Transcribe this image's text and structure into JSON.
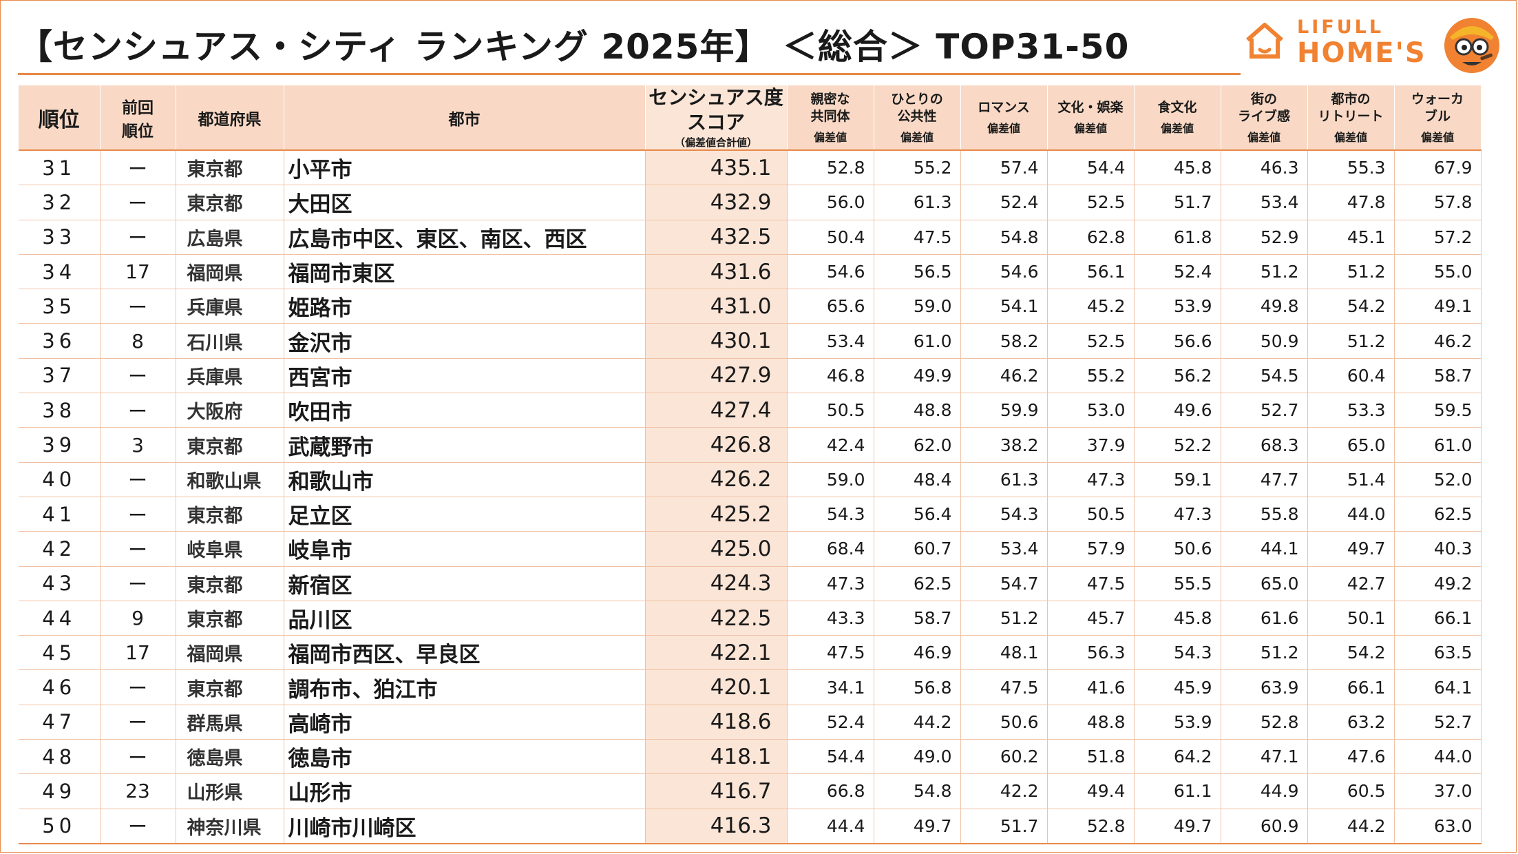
{
  "title": "【センシュアス・シティ ランキング 2025年】 ＜総合＞ TOP31-50",
  "logo": {
    "line1": "LIFULL",
    "line2": "HOME'S",
    "color": "#f08232"
  },
  "colors": {
    "accent": "#e8894a",
    "header_bg": "#f9d9c5",
    "score_bg": "#fbe5d6"
  },
  "headers": {
    "rank": "順位",
    "prev_rank_1": "前回",
    "prev_rank_2": "順位",
    "pref": "都道府県",
    "city": "都市",
    "score_1": "センシュアス度",
    "score_2": "スコア",
    "score_note": "（偏差値合計値）",
    "subnote": "偏差値",
    "cols": [
      {
        "l1": "親密な",
        "l2": "共同体"
      },
      {
        "l1": "ひとりの",
        "l2": "公共性"
      },
      {
        "l1": "ロマンス",
        "l2": ""
      },
      {
        "l1": "文化・娯楽",
        "l2": ""
      },
      {
        "l1": "食文化",
        "l2": ""
      },
      {
        "l1": "街の",
        "l2": "ライブ感"
      },
      {
        "l1": "都市の",
        "l2": "リトリート"
      },
      {
        "l1": "ウォーカ",
        "l2": "ブル"
      }
    ]
  },
  "rows": [
    {
      "rank": "31",
      "prev": "ー",
      "pref": "東京都",
      "city": "小平市",
      "score": "435.1",
      "vals": [
        "52.8",
        "55.2",
        "57.4",
        "54.4",
        "45.8",
        "46.3",
        "55.3",
        "67.9"
      ]
    },
    {
      "rank": "32",
      "prev": "ー",
      "pref": "東京都",
      "city": "大田区",
      "score": "432.9",
      "vals": [
        "56.0",
        "61.3",
        "52.4",
        "52.5",
        "51.7",
        "53.4",
        "47.8",
        "57.8"
      ]
    },
    {
      "rank": "33",
      "prev": "ー",
      "pref": "広島県",
      "city": "広島市中区、東区、南区、西区",
      "score": "432.5",
      "vals": [
        "50.4",
        "47.5",
        "54.8",
        "62.8",
        "61.8",
        "52.9",
        "45.1",
        "57.2"
      ]
    },
    {
      "rank": "34",
      "prev": "17",
      "pref": "福岡県",
      "city": "福岡市東区",
      "score": "431.6",
      "vals": [
        "54.6",
        "56.5",
        "54.6",
        "56.1",
        "52.4",
        "51.2",
        "51.2",
        "55.0"
      ]
    },
    {
      "rank": "35",
      "prev": "ー",
      "pref": "兵庫県",
      "city": "姫路市",
      "score": "431.0",
      "vals": [
        "65.6",
        "59.0",
        "54.1",
        "45.2",
        "53.9",
        "49.8",
        "54.2",
        "49.1"
      ]
    },
    {
      "rank": "36",
      "prev": "8",
      "pref": "石川県",
      "city": "金沢市",
      "score": "430.1",
      "vals": [
        "53.4",
        "61.0",
        "58.2",
        "52.5",
        "56.6",
        "50.9",
        "51.2",
        "46.2"
      ]
    },
    {
      "rank": "37",
      "prev": "ー",
      "pref": "兵庫県",
      "city": "西宮市",
      "score": "427.9",
      "vals": [
        "46.8",
        "49.9",
        "46.2",
        "55.2",
        "56.2",
        "54.5",
        "60.4",
        "58.7"
      ]
    },
    {
      "rank": "38",
      "prev": "ー",
      "pref": "大阪府",
      "city": "吹田市",
      "score": "427.4",
      "vals": [
        "50.5",
        "48.8",
        "59.9",
        "53.0",
        "49.6",
        "52.7",
        "53.3",
        "59.5"
      ]
    },
    {
      "rank": "39",
      "prev": "3",
      "pref": "東京都",
      "city": "武蔵野市",
      "score": "426.8",
      "vals": [
        "42.4",
        "62.0",
        "38.2",
        "37.9",
        "52.2",
        "68.3",
        "65.0",
        "61.0"
      ]
    },
    {
      "rank": "40",
      "prev": "ー",
      "pref": "和歌山県",
      "city": "和歌山市",
      "score": "426.2",
      "vals": [
        "59.0",
        "48.4",
        "61.3",
        "47.3",
        "59.1",
        "47.7",
        "51.4",
        "52.0"
      ]
    },
    {
      "rank": "41",
      "prev": "ー",
      "pref": "東京都",
      "city": "足立区",
      "score": "425.2",
      "vals": [
        "54.3",
        "56.4",
        "54.3",
        "50.5",
        "47.3",
        "55.8",
        "44.0",
        "62.5"
      ]
    },
    {
      "rank": "42",
      "prev": "ー",
      "pref": "岐阜県",
      "city": "岐阜市",
      "score": "425.0",
      "vals": [
        "68.4",
        "60.7",
        "53.4",
        "57.9",
        "50.6",
        "44.1",
        "49.7",
        "40.3"
      ]
    },
    {
      "rank": "43",
      "prev": "ー",
      "pref": "東京都",
      "city": "新宿区",
      "score": "424.3",
      "vals": [
        "47.3",
        "62.5",
        "54.7",
        "47.5",
        "55.5",
        "65.0",
        "42.7",
        "49.2"
      ]
    },
    {
      "rank": "44",
      "prev": "9",
      "pref": "東京都",
      "city": "品川区",
      "score": "422.5",
      "vals": [
        "43.3",
        "58.7",
        "51.2",
        "45.7",
        "45.8",
        "61.6",
        "50.1",
        "66.1"
      ]
    },
    {
      "rank": "45",
      "prev": "17",
      "pref": "福岡県",
      "city": "福岡市西区、早良区",
      "score": "422.1",
      "vals": [
        "47.5",
        "46.9",
        "48.1",
        "56.3",
        "54.3",
        "51.2",
        "54.2",
        "63.5"
      ]
    },
    {
      "rank": "46",
      "prev": "ー",
      "pref": "東京都",
      "city": "調布市、狛江市",
      "score": "420.1",
      "vals": [
        "34.1",
        "56.8",
        "47.5",
        "41.6",
        "45.9",
        "63.9",
        "66.1",
        "64.1"
      ]
    },
    {
      "rank": "47",
      "prev": "ー",
      "pref": "群馬県",
      "city": "高崎市",
      "score": "418.6",
      "vals": [
        "52.4",
        "44.2",
        "50.6",
        "48.8",
        "53.9",
        "52.8",
        "63.2",
        "52.7"
      ]
    },
    {
      "rank": "48",
      "prev": "ー",
      "pref": "徳島県",
      "city": "徳島市",
      "score": "418.1",
      "vals": [
        "54.4",
        "49.0",
        "60.2",
        "51.8",
        "64.2",
        "47.1",
        "47.6",
        "44.0"
      ]
    },
    {
      "rank": "49",
      "prev": "23",
      "pref": "山形県",
      "city": "山形市",
      "score": "416.7",
      "vals": [
        "66.8",
        "54.8",
        "42.2",
        "49.4",
        "61.1",
        "44.9",
        "60.5",
        "37.0"
      ]
    },
    {
      "rank": "50",
      "prev": "ー",
      "pref": "神奈川県",
      "city": "川崎市川崎区",
      "score": "416.3",
      "vals": [
        "44.4",
        "49.7",
        "51.7",
        "52.8",
        "49.7",
        "60.9",
        "44.2",
        "63.0"
      ]
    }
  ]
}
